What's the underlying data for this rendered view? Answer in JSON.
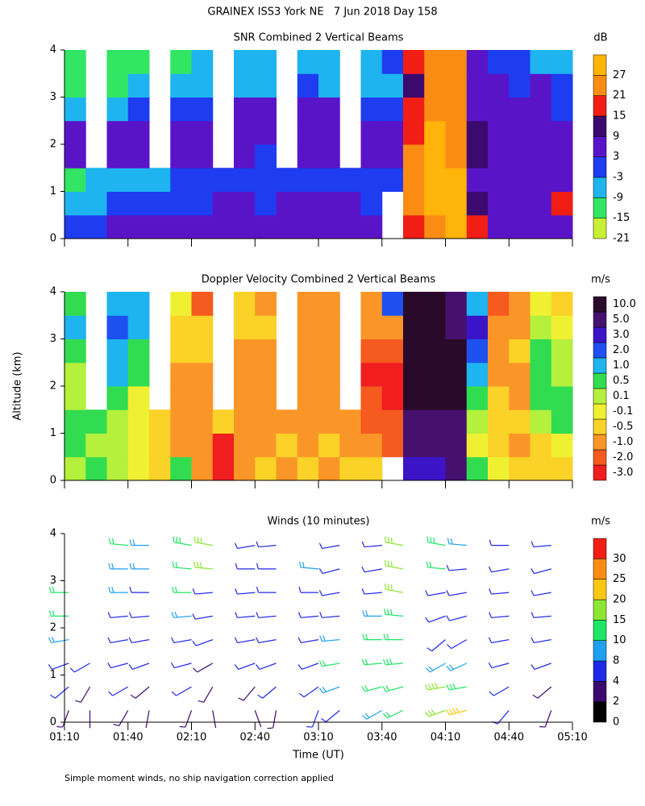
{
  "title": "GRAINEX ISS3 York NE   7 Jun 2018 Day 158",
  "footnote": "Simple moment winds, no ship navigation correction applied",
  "chart_data": [
    {
      "type": "heatmap",
      "title": "SNR Combined 2 Vertical Beams",
      "unit": "dB",
      "xlim": [
        70,
        310
      ],
      "xticks": [
        70,
        100,
        130,
        160,
        190,
        220,
        250,
        280,
        310
      ],
      "ylim": [
        0,
        4
      ],
      "yticks": [
        0,
        1,
        2,
        3,
        4
      ],
      "x": [
        75,
        85,
        95,
        105,
        115,
        125,
        135,
        145,
        155,
        165,
        175,
        185,
        195,
        205,
        215,
        225,
        235,
        245,
        255,
        265,
        275,
        285,
        295,
        305
      ],
      "y": [
        0.25,
        0.75,
        1.25,
        1.75,
        2.25,
        2.75,
        3.25,
        3.75
      ],
      "z": [
        [
          0,
          2,
          4,
          5,
          3,
          4,
          5,
          6,
          6,
          5,
          6,
          7,
          6,
          8,
          5,
          null,
          18,
          26,
          27,
          20,
          8,
          6,
          5,
          6
        ],
        [
          -6,
          -5,
          -3,
          -2,
          -1,
          0,
          2,
          4,
          3,
          2,
          4,
          3,
          5,
          4,
          2,
          null,
          22,
          27,
          28,
          12,
          6,
          5,
          4,
          15
        ],
        [
          -10,
          -9,
          -8,
          -6,
          -5,
          -3,
          -2,
          -1,
          0,
          -2,
          -1,
          0,
          2,
          1,
          0,
          2,
          24,
          28,
          27,
          6,
          4,
          3,
          5,
          6
        ],
        [
          8,
          null,
          8,
          7,
          null,
          6,
          5,
          null,
          3,
          2,
          null,
          4,
          5,
          null,
          6,
          7,
          22,
          27,
          26,
          10,
          7,
          8,
          6,
          5
        ],
        [
          6,
          null,
          7,
          8,
          null,
          6,
          7,
          null,
          8,
          7,
          null,
          6,
          5,
          null,
          3,
          5,
          20,
          27,
          26,
          9,
          8,
          8,
          7,
          4
        ],
        [
          -4,
          null,
          -6,
          -3,
          null,
          0,
          -2,
          null,
          4,
          5,
          null,
          6,
          4,
          null,
          1,
          -2,
          16,
          26,
          25,
          8,
          7,
          5,
          3,
          2
        ],
        [
          -12,
          null,
          -10,
          -9,
          null,
          -8,
          -7,
          null,
          -5,
          -4,
          null,
          -3,
          -5,
          null,
          -6,
          -4,
          14,
          25,
          24,
          6,
          4,
          2,
          3,
          -2
        ],
        [
          -14,
          null,
          -12,
          -11,
          null,
          -10,
          -9,
          null,
          -8,
          -7,
          null,
          -6,
          -7,
          null,
          -8,
          -3,
          18,
          24,
          22,
          5,
          2,
          -3,
          -6,
          -9
        ]
      ],
      "colorbar": {
        "label_position": "edge",
        "ticks": [
          -21,
          -15,
          -9,
          -3,
          3,
          9,
          15,
          21,
          27
        ],
        "colors": [
          "#c8f032",
          "#32e664",
          "#1eb4f0",
          "#1e3cf0",
          "#5a14c8",
          "#3c0a6e",
          "#f01e14",
          "#fa8c14",
          "#ffb40a"
        ]
      }
    },
    {
      "type": "heatmap",
      "title": "Doppler Velocity Combined 2 Vertical Beams",
      "unit": "m/s",
      "ylabel": "Altitude (km)",
      "xlim": [
        70,
        310
      ],
      "xticks": [
        70,
        100,
        130,
        160,
        190,
        220,
        250,
        280,
        310
      ],
      "ylim": [
        0,
        4
      ],
      "yticks": [
        0,
        1,
        2,
        3,
        4
      ],
      "x": [
        75,
        85,
        95,
        105,
        115,
        125,
        135,
        145,
        155,
        165,
        175,
        185,
        195,
        205,
        215,
        225,
        235,
        245,
        255,
        265,
        275,
        285,
        295,
        305
      ],
      "y": [
        0.25,
        0.75,
        1.25,
        1.75,
        2.25,
        2.75,
        3.25,
        3.75
      ],
      "z": [
        [
          0.3,
          0.5,
          0.2,
          -0.3,
          -0.5,
          0.5,
          -1,
          -2.5,
          -1,
          -0.7,
          -0.8,
          -0.6,
          -0.8,
          -0.5,
          -0.6,
          null,
          4,
          4,
          5,
          0.5,
          -0.3,
          -0.5,
          -0.6,
          -0.4
        ],
        [
          0.5,
          0.3,
          0.1,
          -0.2,
          -0.6,
          -0.8,
          -1.2,
          -3,
          -0.9,
          -1,
          -0.7,
          -0.9,
          -0.6,
          -1,
          -0.8,
          -1.5,
          5,
          5,
          5,
          -0.2,
          -0.6,
          -0.8,
          -0.4,
          -0.3
        ],
        [
          0.6,
          0.4,
          0.2,
          -0.3,
          -0.5,
          -1,
          -0.8,
          -0.7,
          -0.9,
          -1,
          -1.2,
          -0.9,
          -1,
          -1.1,
          -1.5,
          -1.8,
          5,
          6,
          6,
          0.2,
          -0.7,
          -0.5,
          0.3,
          0.5
        ],
        [
          0.3,
          null,
          0.4,
          -0.2,
          null,
          -0.9,
          -1.2,
          null,
          -1,
          -1.1,
          null,
          -0.9,
          -1.2,
          null,
          -1.6,
          -2.5,
          8,
          10,
          9,
          0.6,
          -0.6,
          -1.2,
          0.5,
          0.4
        ],
        [
          0.2,
          null,
          1,
          0.5,
          null,
          -1,
          -0.8,
          null,
          -0.8,
          -0.9,
          null,
          -1,
          -1.3,
          null,
          -2.5,
          -2.8,
          10,
          12,
          10,
          1.5,
          -1,
          -0.8,
          0.6,
          0.3
        ],
        [
          0.5,
          null,
          1.5,
          0.6,
          null,
          -0.6,
          -0.7,
          null,
          -0.9,
          -1,
          null,
          -1.2,
          -0.9,
          null,
          -1.5,
          -2,
          9,
          12,
          8,
          2.5,
          -0.8,
          -0.6,
          0.4,
          0.2
        ],
        [
          0.8,
          null,
          1.8,
          1.5,
          null,
          -0.4,
          -0.6,
          null,
          -0.7,
          -0.5,
          null,
          -0.9,
          -1,
          null,
          -1.2,
          -1,
          8,
          11,
          6,
          3,
          -1.2,
          -0.8,
          0.3,
          -0.2
        ],
        [
          0.6,
          null,
          1.5,
          0.8,
          null,
          -0.3,
          -1.5,
          null,
          -0.6,
          -0.8,
          null,
          -1,
          -0.9,
          null,
          -0.8,
          2,
          8,
          10,
          5,
          1.5,
          -1.5,
          -1,
          -0.2,
          -0.5
        ]
      ],
      "colorbar": {
        "label_position": "center",
        "ticks": [
          {
            "value": -3,
            "label": "-3.0"
          },
          {
            "value": -2,
            "label": "-2.0"
          },
          {
            "value": -1,
            "label": "-1.0"
          },
          -0.5,
          -0.1,
          0.1,
          0.5,
          {
            "value": 1,
            "label": "1.0"
          },
          {
            "value": 2,
            "label": "2.0"
          },
          {
            "value": 3,
            "label": "3.0"
          },
          {
            "value": 5,
            "label": "5.0"
          },
          {
            "value": 10,
            "label": "10.0"
          }
        ],
        "colors": [
          "#f01e1e",
          "#f55a1e",
          "#fa9628",
          "#fad228",
          "#f0f032",
          "#b4f03c",
          "#32dc50",
          "#1eb4f0",
          "#1e50f0",
          "#3c14c8",
          "#46106e",
          "#2a0a2a"
        ]
      }
    },
    {
      "type": "barbs",
      "title": "Winds (10 minutes)",
      "unit": "m/s",
      "xlabel": "Time (UT)",
      "xlim": [
        70,
        310
      ],
      "xticks": [
        {
          "value": 70,
          "label": "01:10"
        },
        {
          "value": 100,
          "label": "01:40"
        },
        {
          "value": 130,
          "label": "02:10"
        },
        {
          "value": 160,
          "label": "02:40"
        },
        {
          "value": 190,
          "label": "03:10"
        },
        {
          "value": 220,
          "label": "03:40"
        },
        {
          "value": 250,
          "label": "04:10"
        },
        {
          "value": 280,
          "label": "04:40"
        },
        {
          "value": 310,
          "label": "05:10"
        }
      ],
      "ylim": [
        0,
        4
      ],
      "yticks": [
        0,
        1,
        2,
        3,
        4
      ],
      "y": [
        0.25,
        0.75,
        1.25,
        1.75,
        2.25,
        2.75,
        3.25,
        3.75
      ],
      "profiles": [
        {
          "time": 72,
          "speed": [
            3,
            4,
            5,
            8,
            10,
            12,
            null,
            null
          ],
          "direction": [
            200,
            230,
            250,
            260,
            270,
            270,
            null,
            null
          ]
        },
        {
          "time": 82,
          "speed": [
            2,
            3,
            4,
            null,
            null,
            null,
            null,
            null
          ],
          "direction": [
            180,
            210,
            240,
            null,
            null,
            null,
            null,
            null
          ]
        },
        {
          "time": 100,
          "speed": [
            3,
            4,
            5,
            6,
            6,
            8,
            9,
            10
          ],
          "direction": [
            210,
            240,
            255,
            260,
            265,
            270,
            270,
            275
          ]
        },
        {
          "time": 110,
          "speed": [
            2,
            3,
            4,
            5,
            6,
            7,
            8,
            9
          ],
          "direction": [
            190,
            230,
            250,
            260,
            265,
            270,
            270,
            270
          ]
        },
        {
          "time": 130,
          "speed": [
            3,
            4,
            5,
            6,
            8,
            10,
            12,
            14
          ],
          "direction": [
            200,
            240,
            255,
            260,
            265,
            270,
            275,
            280
          ]
        },
        {
          "time": 140,
          "speed": [
            2,
            3,
            3,
            4,
            5,
            6,
            15,
            16
          ],
          "direction": [
            170,
            210,
            240,
            250,
            260,
            265,
            275,
            280
          ]
        },
        {
          "time": 160,
          "speed": [
            2,
            3,
            4,
            5,
            5,
            6,
            6,
            5
          ],
          "direction": [
            160,
            220,
            250,
            260,
            265,
            265,
            270,
            260
          ]
        },
        {
          "time": 170,
          "speed": [
            3,
            4,
            5,
            6,
            6,
            7,
            6,
            6
          ],
          "direction": [
            190,
            230,
            250,
            260,
            265,
            270,
            270,
            265
          ]
        },
        {
          "time": 190,
          "speed": [
            4,
            5,
            6,
            6,
            6,
            7,
            8,
            null
          ],
          "direction": [
            200,
            235,
            250,
            260,
            265,
            270,
            275,
            null
          ]
        },
        {
          "time": 200,
          "speed": [
            6,
            8,
            10,
            8,
            6,
            5,
            4,
            5
          ],
          "direction": [
            230,
            250,
            260,
            265,
            265,
            260,
            255,
            260
          ]
        },
        {
          "time": 220,
          "speed": [
            8,
            10,
            12,
            10,
            8,
            6,
            5,
            6
          ],
          "direction": [
            240,
            255,
            265,
            270,
            270,
            265,
            260,
            265
          ]
        },
        {
          "time": 230,
          "speed": [
            10,
            12,
            14,
            12,
            14,
            15,
            16,
            15
          ],
          "direction": [
            245,
            255,
            265,
            270,
            275,
            280,
            280,
            280
          ]
        },
        {
          "time": 250,
          "speed": [
            16,
            18,
            8,
            6,
            6,
            5,
            12,
            14
          ],
          "direction": [
            250,
            260,
            240,
            230,
            250,
            260,
            275,
            280
          ]
        },
        {
          "time": 260,
          "speed": [
            20,
            14,
            8,
            6,
            6,
            5,
            5,
            8
          ],
          "direction": [
            255,
            260,
            245,
            240,
            255,
            260,
            265,
            275
          ]
        },
        {
          "time": 280,
          "speed": [
            4,
            5,
            6,
            6,
            5,
            5,
            4,
            6
          ],
          "direction": [
            220,
            240,
            255,
            260,
            265,
            265,
            260,
            270
          ]
        },
        {
          "time": 300,
          "speed": [
            3,
            3,
            4,
            5,
            5,
            4,
            4,
            5
          ],
          "direction": [
            200,
            230,
            250,
            260,
            265,
            260,
            255,
            265
          ]
        }
      ],
      "colorbar": {
        "label_position": "edge",
        "ticks": [
          0,
          2,
          4,
          8,
          10,
          15,
          20,
          25,
          30
        ],
        "colors": [
          "#000000",
          "#3c0a6e",
          "#1e28e6",
          "#1ea0f0",
          "#1ee664",
          "#8ce632",
          "#fac814",
          "#fa8c14",
          "#f01e14"
        ]
      }
    }
  ]
}
